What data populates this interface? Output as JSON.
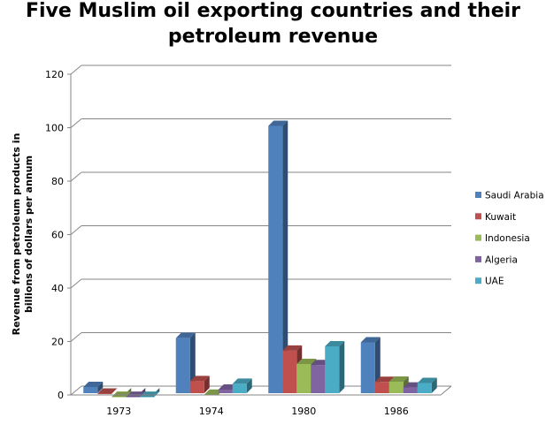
{
  "chart_data": {
    "type": "bar",
    "variant": "3d-clustered-column",
    "title_lines": [
      "Five Muslim oil exporting countries and their",
      "petroleum revenue"
    ],
    "xlabel": "",
    "ylabel_lines": [
      "Revenue from petroleum products in",
      "billions of dollars per annum"
    ],
    "categories": [
      "1973",
      "1974",
      "1980",
      "1986"
    ],
    "ylim": [
      0,
      120
    ],
    "yticks": [
      "0",
      "20",
      "40",
      "60",
      "80",
      "100",
      "120"
    ],
    "grid": true,
    "legend_position": "right",
    "series": [
      {
        "name": "Saudi Arabia",
        "color": "#4F81BD",
        "values": [
          4.3,
          22.6,
          102,
          21
        ]
      },
      {
        "name": "Kuwait",
        "color": "#C0504D",
        "values": [
          1.8,
          6.5,
          17.9,
          6.2
        ]
      },
      {
        "name": "Indonesia",
        "color": "#9BBB59",
        "values": [
          0.6,
          1.4,
          12.9,
          6.3
        ]
      },
      {
        "name": "Algeria",
        "color": "#8064A2",
        "values": [
          0.6,
          3.3,
          12.5,
          4.1
        ]
      },
      {
        "name": "UAE",
        "color": "#4BACC6",
        "values": [
          0.6,
          5.5,
          19.5,
          5.8
        ]
      }
    ]
  }
}
